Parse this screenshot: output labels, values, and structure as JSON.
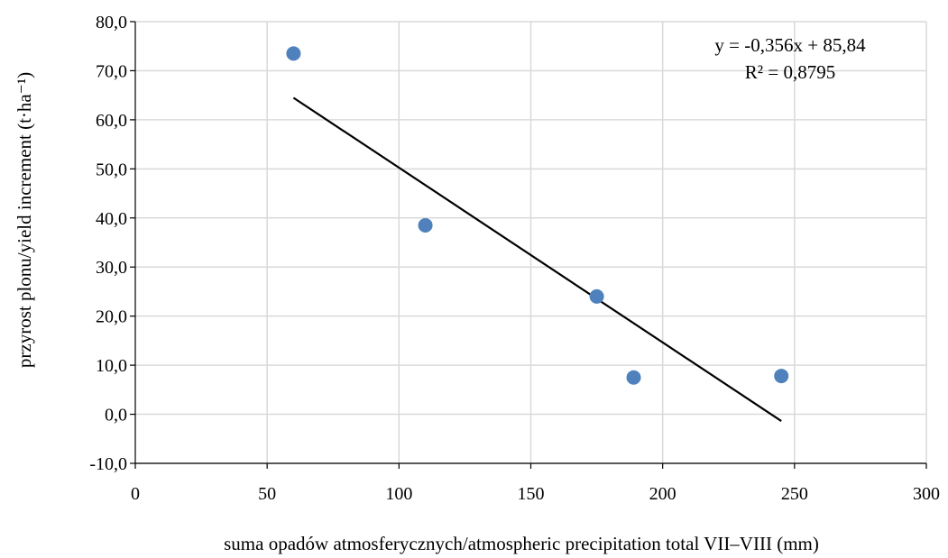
{
  "chart_data": {
    "type": "scatter",
    "xlabel": "suma opadów atmosferycznych/atmospheric precipitation total VII–VIII (mm)",
    "ylabel": "przyrost plonu/yield increment (t·ha⁻¹)",
    "xlim": [
      0,
      300
    ],
    "ylim": [
      -10,
      80
    ],
    "xticks": [
      0,
      50,
      100,
      150,
      200,
      250,
      300
    ],
    "yticks": [
      -10,
      0,
      10,
      20,
      30,
      40,
      50,
      60,
      70,
      80
    ],
    "xtick_labels": [
      "0",
      "50",
      "100",
      "150",
      "200",
      "250",
      "300"
    ],
    "ytick_labels": [
      "-10,0",
      "0,0",
      "10,0",
      "20,0",
      "30,0",
      "40,0",
      "50,0",
      "60,0",
      "70,0",
      "80,0"
    ],
    "grid": true,
    "legend": "none",
    "points": [
      {
        "x": 60,
        "y": 73.5
      },
      {
        "x": 110,
        "y": 38.5
      },
      {
        "x": 175,
        "y": 24.0
      },
      {
        "x": 189,
        "y": 7.5
      },
      {
        "x": 245,
        "y": 7.8
      }
    ],
    "trendline": {
      "type": "linear",
      "slope": -0.356,
      "intercept": 85.84,
      "x_range": [
        60,
        245
      ]
    },
    "annotations": {
      "equation": "y = -0,356x + 85,84",
      "r_squared": "R² = 0,8795"
    },
    "colors": {
      "points": "#4f81bd",
      "trendline": "#000000",
      "grid": "#d9d9d9"
    }
  }
}
